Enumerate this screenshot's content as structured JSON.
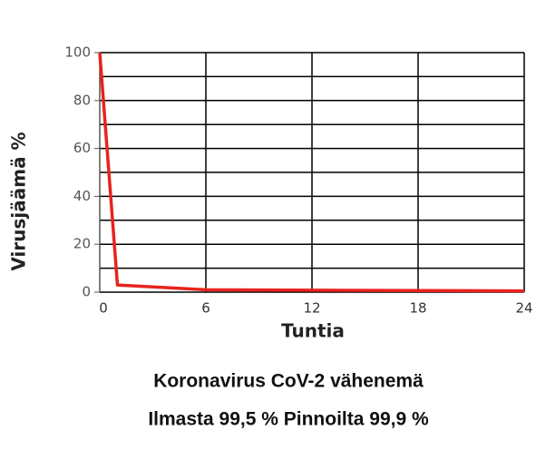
{
  "chart_data": {
    "type": "line",
    "title": "Koronavirus CoV-2 vähenemä",
    "subtitle": "Ilmasta 99,5 % Pinnoilta 99,9 %",
    "xlabel": "Tuntia",
    "ylabel": "Virusjäämä %",
    "x": [
      0,
      1,
      6,
      24
    ],
    "series": [
      {
        "name": "Virusjäämä",
        "color": "#e8231e",
        "values": [
          100,
          3,
          1,
          0.5
        ]
      }
    ],
    "xlim": [
      0,
      24
    ],
    "xticks": [
      0,
      6,
      12,
      18,
      24
    ],
    "ylim": [
      0,
      100
    ],
    "yticks": [
      0,
      20,
      40,
      60,
      80,
      100
    ],
    "minor_yticks": [
      10,
      30,
      50,
      70,
      90
    ],
    "grid": true
  }
}
